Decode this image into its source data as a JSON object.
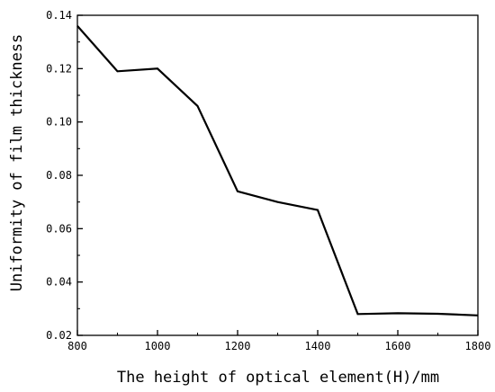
{
  "chart_data": {
    "type": "line",
    "title": "",
    "xlabel": "The height of optical element(H)/mm",
    "ylabel": "Uniformity of film thickness",
    "xlim": [
      800,
      1800
    ],
    "ylim": [
      0.02,
      0.14
    ],
    "x_ticks": [
      "800",
      "1000",
      "1200",
      "1400",
      "1600",
      "1800"
    ],
    "y_ticks": [
      "0.02",
      "0.04",
      "0.06",
      "0.08",
      "0.10",
      "0.12",
      "0.14"
    ],
    "x_tick_values": [
      800,
      1000,
      1200,
      1400,
      1600,
      1800
    ],
    "y_tick_values": [
      0.02,
      0.04,
      0.06,
      0.08,
      0.1,
      0.12,
      0.14
    ],
    "grid": false,
    "legend": "none",
    "line_color": "#000000",
    "series": [
      {
        "x": [
          800,
          900,
          1000,
          1100,
          1200,
          1300,
          1400,
          1500,
          1600,
          1700,
          1800
        ],
        "values": [
          0.136,
          0.119,
          0.12,
          0.106,
          0.074,
          0.07,
          0.067,
          0.028,
          0.0283,
          0.0281,
          0.0275
        ]
      }
    ]
  }
}
